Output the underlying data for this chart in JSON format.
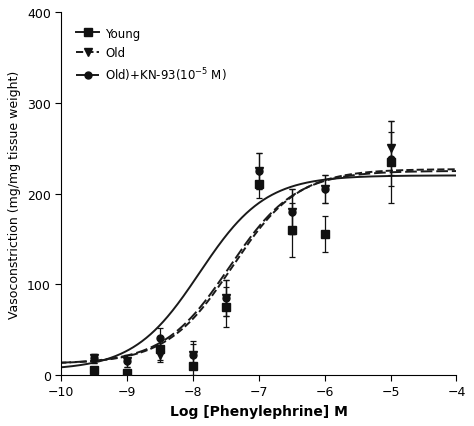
{
  "title": "",
  "xlabel": "Log [Phenylephrine] M",
  "ylabel": "Vasoconstriction (mg/mg tissue weight)",
  "xlim": [
    -10,
    -4
  ],
  "ylim": [
    0,
    400
  ],
  "xticks": [
    -10,
    -9,
    -8,
    -7,
    -6,
    -5,
    -4
  ],
  "yticks": [
    0,
    100,
    200,
    300,
    400
  ],
  "young_x": [
    -9.5,
    -9.0,
    -8.5,
    -8.0,
    -7.5,
    -7.0,
    -6.5,
    -6.0,
    -5.0
  ],
  "young_y": [
    5,
    2,
    28,
    10,
    75,
    210,
    160,
    155,
    235
  ],
  "young_yerr": [
    4,
    2,
    12,
    10,
    22,
    15,
    30,
    20,
    45
  ],
  "old_x": [
    -9.5,
    -9.0,
    -8.5,
    -8.0,
    -7.5,
    -7.0,
    -6.5,
    -6.0,
    -5.0
  ],
  "old_y": [
    18,
    15,
    22,
    22,
    85,
    225,
    180,
    205,
    250
  ],
  "old_yerr": [
    5,
    7,
    8,
    15,
    20,
    20,
    25,
    15,
    30
  ],
  "kn93_x": [
    -9.5,
    -9.0,
    -8.5,
    -8.0,
    -7.5,
    -7.0,
    -6.5,
    -6.0,
    -5.0
  ],
  "kn93_y": [
    18,
    15,
    40,
    22,
    85,
    225,
    180,
    205,
    238
  ],
  "kn93_yerr": [
    5,
    7,
    12,
    12,
    20,
    20,
    25,
    15,
    30
  ],
  "young_curve_x0": -7.9,
  "young_curve_k": 2.0,
  "young_curve_ymax": 215,
  "young_curve_ymin": 5,
  "old_curve_x0": -7.4,
  "old_curve_k": 2.0,
  "old_curve_ymax": 215,
  "old_curve_ymin": 12,
  "kn93_curve_x0": -7.45,
  "kn93_curve_k": 2.0,
  "kn93_curve_ymax": 213,
  "kn93_curve_ymin": 12,
  "line_color": "#1a1a1a",
  "young_marker": "s",
  "old_marker": "v",
  "kn93_marker": "o",
  "legend_labels": [
    "Young",
    "Old",
    "Old)+KN-93(10$^{-5}$ M)"
  ],
  "background_color": "#ffffff"
}
